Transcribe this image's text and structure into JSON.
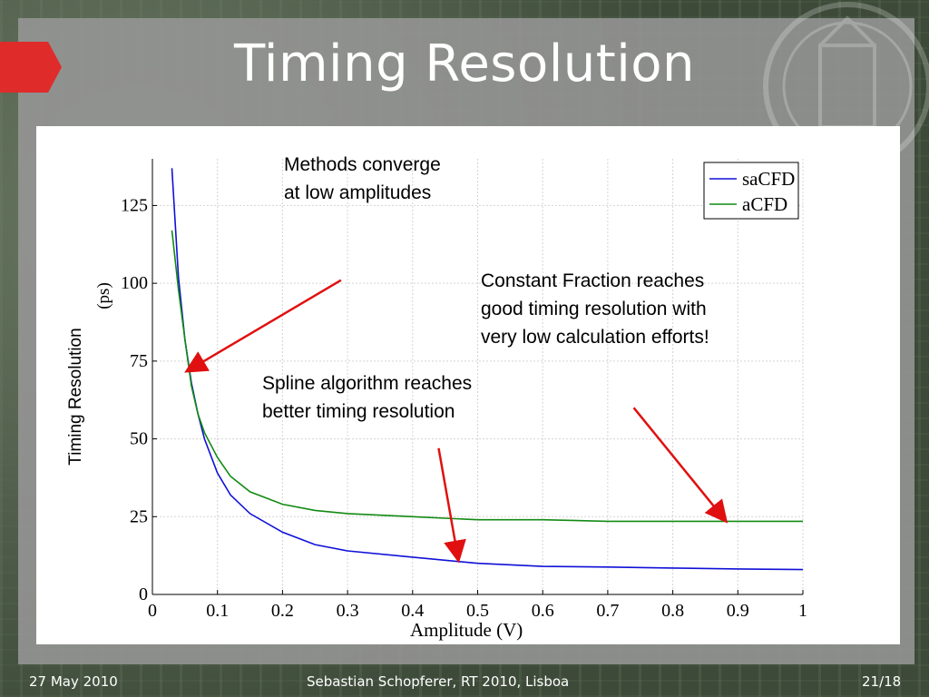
{
  "slide": {
    "title": "Timing Resolution",
    "footer_left": "27 May 2010",
    "footer_center": "Sebastian Schopferer, RT 2010, Lisboa",
    "footer_right": "21/18"
  },
  "annotations": {
    "converge": "Methods converge\nat low amplitudes",
    "constant": "Constant Fraction reaches\ngood timing resolution with\nvery low calculation efforts!",
    "spline": "Spline algorithm reaches\nbetter timing resolution"
  },
  "colors": {
    "saCFD": "#1010d8",
    "aCFD": "#138a13",
    "arrow": "#e01010",
    "accent": "#e02b2b"
  },
  "chart_data": {
    "type": "line",
    "title": "",
    "xlabel": "Amplitude (V)",
    "ylabel": "Timing Resolution",
    "ylabel_unit": "(ps)",
    "xlim": [
      0,
      1
    ],
    "ylim": [
      0,
      140
    ],
    "grid": true,
    "legend_position": "top-right",
    "x_ticks": [
      "0",
      "0.1",
      "0.2",
      "0.3",
      "0.4",
      "0.5",
      "0.6",
      "0.7",
      "0.8",
      "0.9",
      "1"
    ],
    "y_ticks": [
      "0",
      "25",
      "50",
      "75",
      "100",
      "125"
    ],
    "series": [
      {
        "name": "saCFD",
        "x": [
          0.03,
          0.04,
          0.05,
          0.06,
          0.07,
          0.08,
          0.1,
          0.12,
          0.15,
          0.2,
          0.25,
          0.3,
          0.4,
          0.5,
          0.6,
          0.7,
          0.8,
          0.9,
          1.0
        ],
        "y": [
          137,
          102,
          82,
          68,
          58,
          50,
          39,
          32,
          26,
          20,
          16,
          14,
          12,
          10,
          9,
          8.8,
          8.5,
          8.2,
          8
        ]
      },
      {
        "name": "aCFD",
        "x": [
          0.03,
          0.04,
          0.05,
          0.06,
          0.07,
          0.08,
          0.1,
          0.12,
          0.15,
          0.2,
          0.25,
          0.3,
          0.4,
          0.5,
          0.6,
          0.7,
          0.8,
          0.9,
          1.0
        ],
        "y": [
          117,
          98,
          82,
          67,
          58,
          52,
          44,
          38,
          33,
          29,
          27,
          26,
          25,
          24,
          24,
          23.5,
          23.5,
          23.5,
          23.5
        ]
      }
    ]
  }
}
